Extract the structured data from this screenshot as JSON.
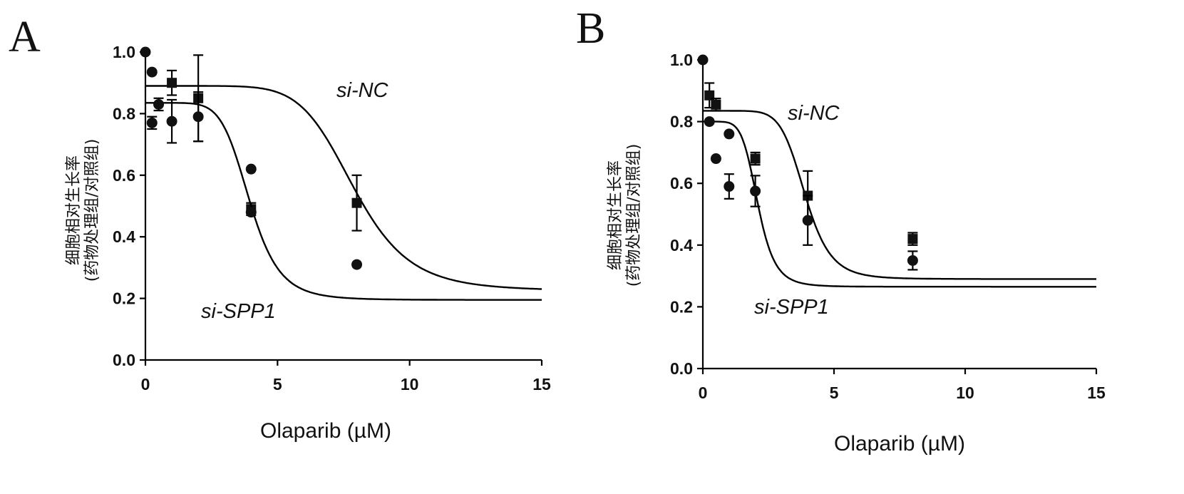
{
  "chart_data": [
    {
      "type": "scatter",
      "panel_label": "A",
      "xlabel": "Olaparib (µM)",
      "ylabel": [
        "细胞相对生长率",
        "(药物处理组/对照组)"
      ],
      "xlim": [
        0,
        15
      ],
      "ylim": [
        0,
        1.0
      ],
      "xticks": [
        0,
        5,
        10,
        15
      ],
      "yticks": [
        0.0,
        0.2,
        0.4,
        0.6,
        0.8,
        1.0
      ],
      "xtick_labels": [
        "0",
        "5",
        "10",
        "15"
      ],
      "ytick_labels": [
        "0.0",
        "0.2",
        "0.4",
        "0.6",
        "0.8",
        "1.0"
      ],
      "series": [
        {
          "name": "si-NC",
          "marker": "square",
          "fit": {
            "top": 0.89,
            "bottom": 0.225,
            "ec50": 7.9,
            "hill": 7.5
          },
          "points": [
            {
              "x": 1.0,
              "y": 0.9,
              "err": 0.04
            },
            {
              "x": 2.0,
              "y": 0.85,
              "err": 0.14
            },
            {
              "x": 4.0,
              "y": 0.49,
              "err": 0.02
            },
            {
              "x": 8.0,
              "y": 0.51,
              "err": 0.09
            }
          ]
        },
        {
          "name": "si-SPP1",
          "marker": "circle",
          "fit": {
            "top": 0.835,
            "bottom": 0.195,
            "ec50": 3.95,
            "hill": 7.0
          },
          "points": [
            {
              "x": 0.0,
              "y": 1.0,
              "err": 0
            },
            {
              "x": 0.25,
              "y": 0.935,
              "err": 0
            },
            {
              "x": 0.25,
              "y": 0.77,
              "err": 0.02
            },
            {
              "x": 0.5,
              "y": 0.83,
              "err": 0.02
            },
            {
              "x": 1.0,
              "y": 0.775,
              "err": 0.07
            },
            {
              "x": 2.0,
              "y": 0.79,
              "err": 0.08
            },
            {
              "x": 4.0,
              "y": 0.62,
              "err": 0
            },
            {
              "x": 4.0,
              "y": 0.48,
              "err": 0
            },
            {
              "x": 8.0,
              "y": 0.31,
              "err": 0
            }
          ]
        }
      ]
    },
    {
      "type": "scatter",
      "panel_label": "B",
      "xlabel": "Olaparib (µM)",
      "ylabel": [
        "细胞相对生长率",
        "(药物处理组/对照组)"
      ],
      "xlim": [
        0,
        15
      ],
      "ylim": [
        0,
        1.0
      ],
      "xticks": [
        0,
        5,
        10,
        15
      ],
      "yticks": [
        0.0,
        0.2,
        0.4,
        0.6,
        0.8,
        1.0
      ],
      "xtick_labels": [
        "0",
        "5",
        "10",
        "15"
      ],
      "ytick_labels": [
        "0.0",
        "0.2",
        "0.4",
        "0.6",
        "0.8",
        "1.0"
      ],
      "series": [
        {
          "name": "si-NC",
          "marker": "square",
          "fit": {
            "top": 0.835,
            "bottom": 0.29,
            "ec50": 3.9,
            "hill": 8.0
          },
          "points": [
            {
              "x": 0.25,
              "y": 0.885,
              "err": 0.04
            },
            {
              "x": 0.5,
              "y": 0.855,
              "err": 0.02
            },
            {
              "x": 2.0,
              "y": 0.68,
              "err": 0.02
            },
            {
              "x": 4.0,
              "y": 0.56,
              "err": 0.08
            },
            {
              "x": 8.0,
              "y": 0.42,
              "err": 0.02
            }
          ]
        },
        {
          "name": "si-SPP1",
          "marker": "circle",
          "fit": {
            "top": 0.8,
            "bottom": 0.265,
            "ec50": 2.1,
            "hill": 6.5
          },
          "points": [
            {
              "x": 0.0,
              "y": 1.0,
              "err": 0
            },
            {
              "x": 0.25,
              "y": 0.8,
              "err": 0
            },
            {
              "x": 0.5,
              "y": 0.68,
              "err": 0
            },
            {
              "x": 1.0,
              "y": 0.76,
              "err": 0
            },
            {
              "x": 1.0,
              "y": 0.59,
              "err": 0.04
            },
            {
              "x": 2.0,
              "y": 0.575,
              "err": 0.05
            },
            {
              "x": 4.0,
              "y": 0.48,
              "err": 0.08
            },
            {
              "x": 8.0,
              "y": 0.35,
              "err": 0.03
            }
          ]
        }
      ]
    }
  ]
}
